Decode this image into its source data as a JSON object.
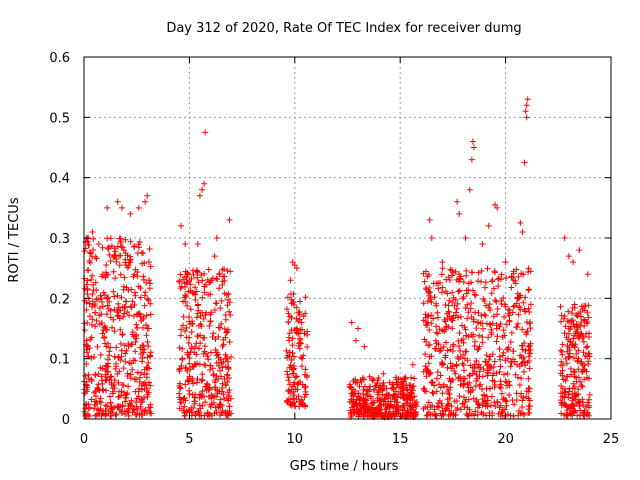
{
  "chart_data": {
    "type": "scatter",
    "title": "Day 312 of 2020, Rate Of TEC Index for receiver dumg",
    "xlabel": "GPS time / hours",
    "ylabel": "ROTI / TECUs",
    "xlim": [
      0,
      25
    ],
    "ylim": [
      0,
      0.6
    ],
    "x_ticks": [
      0,
      5,
      10,
      15,
      20,
      25
    ],
    "y_ticks": [
      0,
      0.1,
      0.2,
      0.3,
      0.4,
      0.5,
      0.6
    ],
    "x_tick_labels": [
      "0",
      "5",
      "10",
      "15",
      "20",
      "25"
    ],
    "y_tick_labels": [
      "0",
      "0.1",
      "0.2",
      "0.3",
      "0.4",
      "0.5",
      "0.6"
    ],
    "grid": true,
    "marker": "+",
    "marker_color": "#ff0000",
    "series": [
      {
        "name": "ROTI",
        "clusters": [
          {
            "x_range": [
              0.0,
              3.2
            ],
            "y_range": [
              0.005,
              0.3
            ],
            "count": 520
          },
          {
            "x_range": [
              4.5,
              7.0
            ],
            "y_range": [
              0.005,
              0.25
            ],
            "count": 360
          },
          {
            "x_range": [
              9.6,
              10.6
            ],
            "y_range": [
              0.02,
              0.21
            ],
            "count": 130
          },
          {
            "x_range": [
              12.6,
              15.8
            ],
            "y_range": [
              0.003,
              0.07
            ],
            "count": 380
          },
          {
            "x_range": [
              16.1,
              21.2
            ],
            "y_range": [
              0.005,
              0.25
            ],
            "count": 640
          },
          {
            "x_range": [
              22.6,
              24.0
            ],
            "y_range": [
              0.005,
              0.19
            ],
            "count": 230
          }
        ],
        "points": [
          [
            0.2,
            0.3
          ],
          [
            0.4,
            0.31
          ],
          [
            1.1,
            0.35
          ],
          [
            1.6,
            0.36
          ],
          [
            1.8,
            0.35
          ],
          [
            2.2,
            0.34
          ],
          [
            2.6,
            0.35
          ],
          [
            2.9,
            0.36
          ],
          [
            3.0,
            0.37
          ],
          [
            0.7,
            0.29
          ],
          [
            4.6,
            0.32
          ],
          [
            4.8,
            0.29
          ],
          [
            5.4,
            0.29
          ],
          [
            5.5,
            0.37
          ],
          [
            5.6,
            0.38
          ],
          [
            5.7,
            0.39
          ],
          [
            5.75,
            0.475
          ],
          [
            6.2,
            0.27
          ],
          [
            6.9,
            0.33
          ],
          [
            6.3,
            0.3
          ],
          [
            9.9,
            0.26
          ],
          [
            10.0,
            0.255
          ],
          [
            10.1,
            0.25
          ],
          [
            9.8,
            0.23
          ],
          [
            12.7,
            0.16
          ],
          [
            13.0,
            0.15
          ],
          [
            12.9,
            0.13
          ],
          [
            13.3,
            0.12
          ],
          [
            15.6,
            0.09
          ],
          [
            14.2,
            0.075
          ],
          [
            16.4,
            0.33
          ],
          [
            16.5,
            0.3
          ],
          [
            17.0,
            0.26
          ],
          [
            17.7,
            0.36
          ],
          [
            17.8,
            0.34
          ],
          [
            18.1,
            0.3
          ],
          [
            18.3,
            0.38
          ],
          [
            18.4,
            0.43
          ],
          [
            18.45,
            0.46
          ],
          [
            18.5,
            0.45
          ],
          [
            18.9,
            0.29
          ],
          [
            19.2,
            0.32
          ],
          [
            19.5,
            0.355
          ],
          [
            19.6,
            0.35
          ],
          [
            20.0,
            0.26
          ],
          [
            20.7,
            0.325
          ],
          [
            20.8,
            0.31
          ],
          [
            20.9,
            0.425
          ],
          [
            20.95,
            0.51
          ],
          [
            21.0,
            0.52
          ],
          [
            21.05,
            0.53
          ],
          [
            21.0,
            0.5
          ],
          [
            22.8,
            0.3
          ],
          [
            23.0,
            0.27
          ],
          [
            23.2,
            0.26
          ],
          [
            23.5,
            0.28
          ],
          [
            23.9,
            0.24
          ]
        ]
      }
    ]
  }
}
